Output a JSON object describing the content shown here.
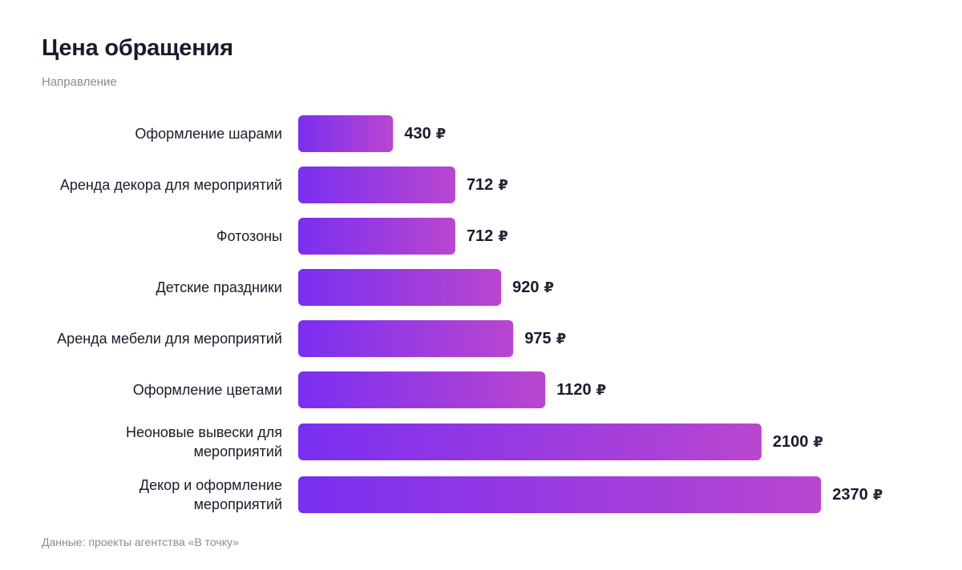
{
  "header": {
    "title": "Цена обращения",
    "subtitle": "Направление"
  },
  "footer": {
    "source": "Данные: проекты агентства «В точку»"
  },
  "colors": {
    "bar_start": "#7a2ff0",
    "bar_end": "#b946d0",
    "text": "#1b1b2b",
    "muted": "#8a8a97"
  },
  "chart_data": {
    "type": "bar",
    "orientation": "horizontal",
    "title": "Цена обращения",
    "subtitle": "Направление",
    "currency": "₽",
    "categories": [
      [
        "Оформление шарами"
      ],
      [
        "Аренда декора для мероприятий"
      ],
      [
        "Фотозоны"
      ],
      [
        "Детские праздники"
      ],
      [
        "Аренда мебели для мероприятий"
      ],
      [
        "Оформление цветами"
      ],
      [
        "Неоновые вывески для",
        "мероприятий"
      ],
      [
        "Декор и оформление",
        "мероприятий"
      ]
    ],
    "values": [
      430,
      712,
      712,
      920,
      975,
      1120,
      2100,
      2370
    ],
    "grid": false,
    "legend": "none"
  }
}
